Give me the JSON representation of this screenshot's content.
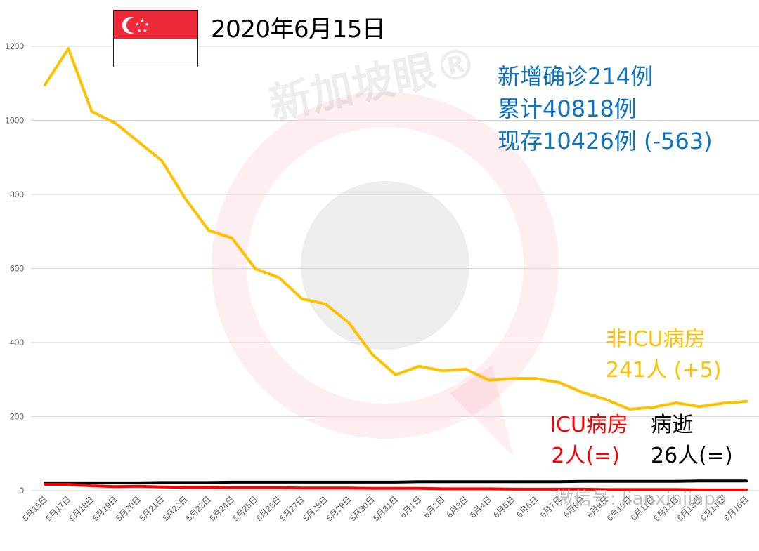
{
  "header": {
    "date": "2020年6月15日",
    "flag": "singapore-flag"
  },
  "stats": {
    "new_cases": "新增确诊214例",
    "total_cases": "累计40818例",
    "active_cases": "现存10426例 (-563)"
  },
  "labels": {
    "non_icu_title": "非ICU病房",
    "non_icu_value": "241人 (+5)",
    "icu_title": "ICU病房",
    "icu_value": "2人(=)",
    "death_title": "病逝",
    "death_value": "26人(=)"
  },
  "watermark": {
    "brand": "新加坡眼®",
    "wechat": "微信号: lianxinjiapo"
  },
  "colors": {
    "non_icu": "#ffc000",
    "icu": "#ff0000",
    "death": "#000000",
    "stats": "#0e74c0",
    "grid": "#d9d9d9",
    "flag_red": "#ee2a3a"
  },
  "chart_data": {
    "type": "line",
    "title": "2020年6月15日",
    "xlabel": "",
    "ylabel": "",
    "ylim": [
      0,
      1200
    ],
    "yticks": [
      0,
      200,
      400,
      600,
      800,
      1000,
      1200
    ],
    "grid": true,
    "legend_position": "inline annotations (right side)",
    "categories": [
      "5月16日",
      "5月17日",
      "5月18日",
      "5月19日",
      "5月20日",
      "5月21日",
      "5月22日",
      "5月23日",
      "5月24日",
      "5月25日",
      "5月26日",
      "5月27日",
      "5月28日",
      "5月29日",
      "5月30日",
      "5月31日",
      "6月1日",
      "6月2日",
      "6月3日",
      "6月4日",
      "6月5日",
      "6月6日",
      "6月7日",
      "6月8日",
      "6月9日",
      "6月10日",
      "6月11日",
      "6月12日",
      "6月13日",
      "6月14日",
      "6月15日"
    ],
    "series": [
      {
        "name": "非ICU病房",
        "color": "#ffc000",
        "values": [
          1096,
          1194,
          1024,
          993,
          942,
          891,
          789,
          703,
          682,
          599,
          576,
          518,
          504,
          453,
          368,
          313,
          336,
          324,
          328,
          298,
          303,
          303,
          292,
          265,
          246,
          220,
          225,
          237,
          227,
          236,
          241
        ]
      },
      {
        "name": "ICU病房",
        "color": "#ff0000",
        "values": [
          17,
          17,
          13,
          11,
          12,
          10,
          9,
          9,
          8,
          8,
          8,
          7,
          7,
          7,
          6,
          6,
          6,
          5,
          5,
          5,
          4,
          4,
          4,
          4,
          3,
          3,
          3,
          3,
          2,
          2,
          2
        ]
      },
      {
        "name": "病逝",
        "color": "#000000",
        "values": [
          21,
          21,
          21,
          21,
          21,
          22,
          22,
          22,
          23,
          23,
          23,
          23,
          23,
          23,
          23,
          23,
          24,
          24,
          24,
          24,
          24,
          24,
          24,
          25,
          25,
          25,
          25,
          25,
          26,
          26,
          26
        ]
      }
    ],
    "annotations": [
      "新增确诊214例",
      "累计40818例",
      "现存10426例 (-563)",
      "非ICU病房 241人 (+5)",
      "ICU病房 2人(=)",
      "病逝 26人(=)"
    ]
  }
}
